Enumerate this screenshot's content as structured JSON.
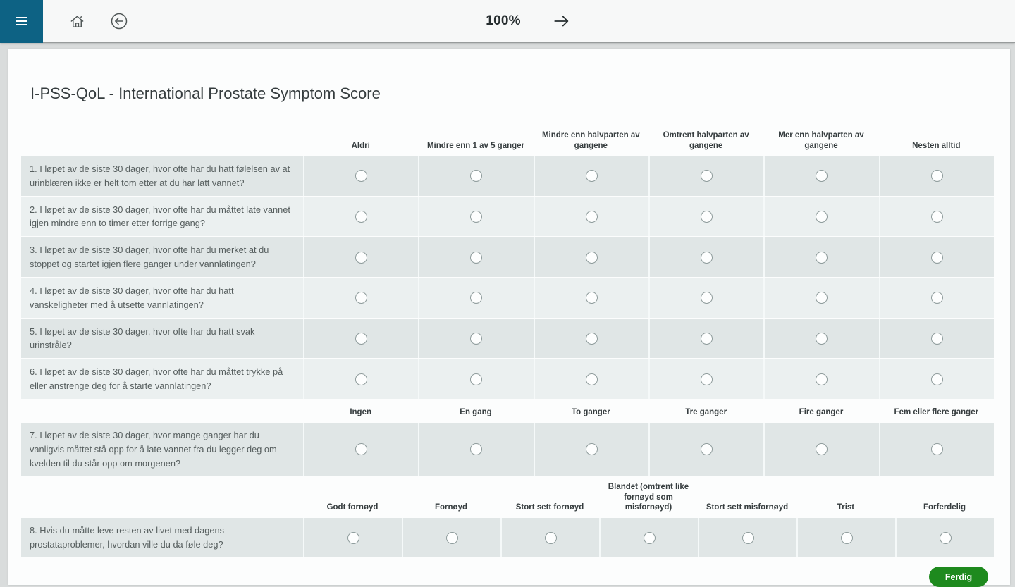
{
  "topbar": {
    "zoom_level": "100%"
  },
  "page": {
    "title": "I-PSS-QoL - International Prostate Symptom Score"
  },
  "form": {
    "groups": [
      {
        "options": [
          "Aldri",
          "Mindre enn 1 av 5 ganger",
          "Mindre enn halvparten av gangene",
          "Omtrent halvparten av gangene",
          "Mer enn halvparten av gangene",
          "Nesten alltid"
        ],
        "questions": [
          "1. I løpet av de siste 30 dager, hvor ofte har du hatt følelsen av at urinblæren ikke er helt tom etter at du har latt vannet?",
          "2. I løpet av de siste 30 dager, hvor ofte har du måttet late vannet igjen mindre enn to timer etter forrige gang?",
          "3. I løpet av de siste 30 dager, hvor ofte har du merket at du stoppet og startet igjen flere ganger under vannlatingen?",
          "4. I løpet av de siste 30 dager, hvor ofte har du hatt vanskeligheter med å utsette vannlatingen?",
          "5. I løpet av de siste 30 dager, hvor ofte har du hatt svak urinstråle?",
          "6. I løpet av de siste 30 dager, hvor ofte har du måttet trykke på eller anstrenge deg for å starte vannlatingen?"
        ]
      },
      {
        "options": [
          "Ingen",
          "En gang",
          "To ganger",
          "Tre ganger",
          "Fire ganger",
          "Fem eller flere ganger"
        ],
        "questions": [
          "7. I løpet av de siste 30 dager, hvor mange ganger har du vanligvis måttet stå opp for å late vannet fra du legger deg om kvelden til du står opp om morgenen?"
        ]
      },
      {
        "options": [
          "Godt fornøyd",
          "Fornøyd",
          "Stort sett fornøyd",
          "Blandet (omtrent like fornøyd som misfornøyd)",
          "Stort sett misfornøyd",
          "Trist",
          "Forferdelig"
        ],
        "questions": [
          "8. Hvis du måtte leve resten av livet med dagens prostataproblemer, hvordan ville du da føle deg?"
        ]
      }
    ],
    "submit_label": "Ferdig"
  },
  "colors": {
    "accent": "#0d6284",
    "row_dark": "#e0e6e6",
    "row_light": "#ebf0f0",
    "submit_green": "#1e8a1e"
  }
}
